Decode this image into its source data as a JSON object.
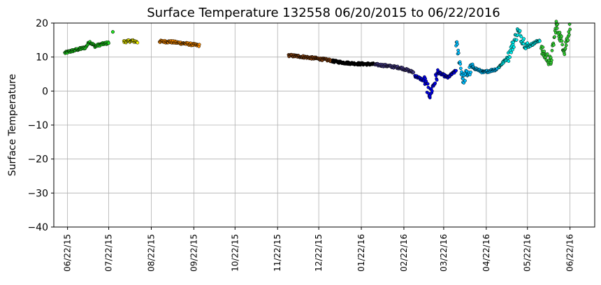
{
  "chart_data": {
    "type": "scatter",
    "title": "Surface Temperature 132558  06/20/2015 to 06/22/2016",
    "ylabel": "Surface Temperature",
    "xlabel": "",
    "ylim": [
      -40,
      20
    ],
    "yticks": [
      20,
      10,
      0,
      -10,
      -20,
      -30,
      -40
    ],
    "ytick_labels": [
      "20",
      "10",
      "0",
      "−10",
      "−20",
      "−30",
      "−40"
    ],
    "xlim": [
      "2015-06-12",
      "2016-07-10"
    ],
    "xticks": [
      "2015-06-22",
      "2015-07-22",
      "2015-08-22",
      "2015-09-22",
      "2015-10-22",
      "2015-11-22",
      "2015-12-22",
      "2016-01-22",
      "2016-02-22",
      "2016-03-22",
      "2016-04-22",
      "2016-05-22",
      "2016-06-22"
    ],
    "xtick_labels": [
      "06/22/15",
      "07/22/15",
      "08/22/15",
      "09/22/15",
      "10/22/15",
      "11/22/15",
      "12/22/15",
      "01/22/16",
      "02/22/16",
      "03/22/16",
      "04/22/16",
      "05/22/16",
      "06/22/16"
    ],
    "grid": true,
    "series": [
      {
        "color": "#22dd22",
        "points": [
          [
            "2015-06-20",
            11.2
          ],
          [
            "2015-06-25",
            11.8
          ],
          [
            "2015-07-01",
            12.4
          ],
          [
            "2015-07-05",
            12.8
          ],
          [
            "2015-07-08",
            14.5
          ],
          [
            "2015-07-12",
            13.2
          ],
          [
            "2015-07-17",
            13.8
          ],
          [
            "2015-07-22",
            14.2
          ]
        ]
      },
      {
        "color": "#22dd22",
        "points": [
          [
            "2015-07-25",
            17.4
          ]
        ]
      },
      {
        "color": "#ffff00",
        "points": [
          [
            "2015-08-02",
            14.5
          ],
          [
            "2015-08-08",
            14.8
          ],
          [
            "2015-08-12",
            14.4
          ]
        ]
      },
      {
        "color": "#ff8c00",
        "points": [
          [
            "2015-08-28",
            14.6
          ],
          [
            "2015-09-05",
            14.5
          ],
          [
            "2015-09-15",
            14.0
          ],
          [
            "2015-09-26",
            13.4
          ]
        ]
      },
      {
        "color": "#8b4513",
        "points": [
          [
            "2015-11-30",
            10.5
          ],
          [
            "2015-12-10",
            10.1
          ],
          [
            "2015-12-20",
            9.6
          ],
          [
            "2015-12-31",
            9.0
          ]
        ]
      },
      {
        "color": "#000000",
        "points": [
          [
            "2016-01-01",
            8.8
          ],
          [
            "2016-01-10",
            8.3
          ],
          [
            "2016-01-20",
            8.0
          ],
          [
            "2016-01-31",
            7.9
          ]
        ]
      },
      {
        "color": "#483d8b",
        "points": [
          [
            "2016-02-01",
            7.8
          ],
          [
            "2016-02-10",
            7.4
          ],
          [
            "2016-02-20",
            6.8
          ],
          [
            "2016-02-29",
            5.5
          ]
        ]
      },
      {
        "color": "#0000ee",
        "points": [
          [
            "2016-03-01",
            4.5
          ],
          [
            "2016-03-08",
            3.0
          ],
          [
            "2016-03-12",
            -1.0
          ],
          [
            "2016-03-18",
            5.5
          ],
          [
            "2016-03-25",
            4.0
          ],
          [
            "2016-03-31",
            6.0
          ]
        ]
      },
      {
        "color": "#00bfff",
        "points": [
          [
            "2016-03-31",
            14.5
          ],
          [
            "2016-04-05",
            3.5
          ],
          [
            "2016-04-12",
            7.0
          ],
          [
            "2016-04-20",
            5.5
          ],
          [
            "2016-04-30",
            6.5
          ]
        ]
      },
      {
        "color": "#00eeee",
        "points": [
          [
            "2016-05-01",
            7.0
          ],
          [
            "2016-05-08",
            10.0
          ],
          [
            "2016-05-15",
            17.5
          ],
          [
            "2016-05-22",
            13.0
          ],
          [
            "2016-05-31",
            15.0
          ]
        ]
      },
      {
        "color": "#32cd32",
        "points": [
          [
            "2016-06-01",
            12.0
          ],
          [
            "2016-06-08",
            8.5
          ],
          [
            "2016-06-12",
            19.5
          ],
          [
            "2016-06-18",
            12.0
          ],
          [
            "2016-06-22",
            19.0
          ]
        ]
      }
    ]
  }
}
